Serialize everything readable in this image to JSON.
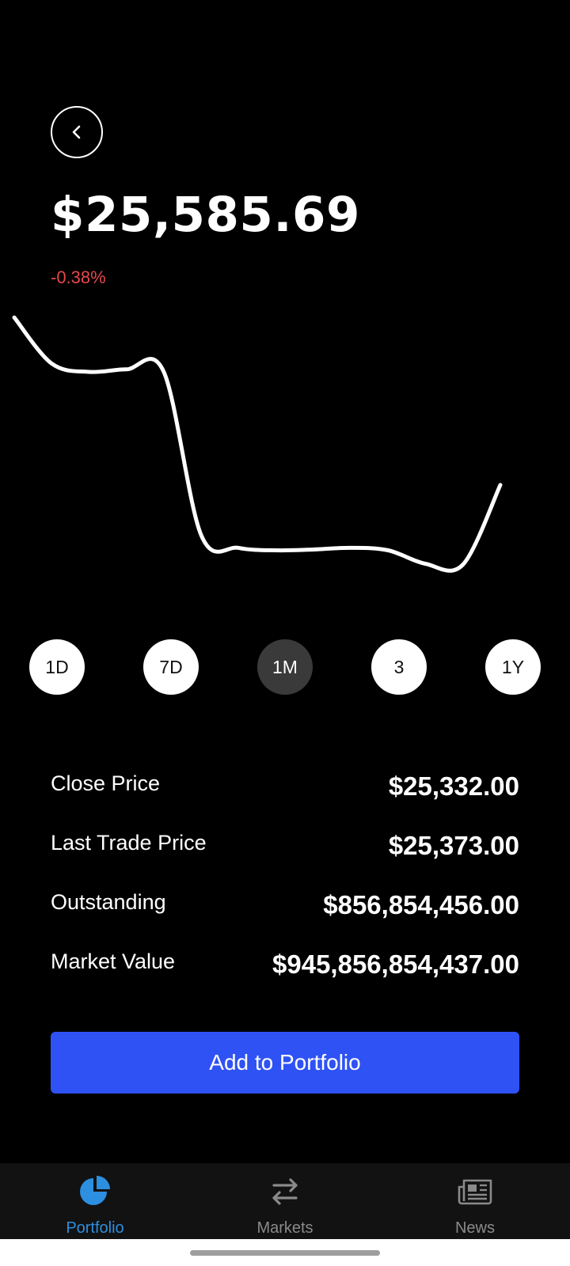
{
  "header": {
    "back_icon": "chevron-left-icon",
    "price": "$25,585.69",
    "change": "-0.38%",
    "change_color": "#e5484d"
  },
  "chart_data": {
    "type": "line",
    "title": "",
    "xlabel": "",
    "ylabel": "",
    "x": [
      0,
      1,
      2,
      3,
      4,
      5,
      6,
      7,
      8,
      9,
      10,
      11,
      12,
      13
    ],
    "series": [
      {
        "values": [
          25900,
          25845,
          25835,
          25838,
          25835,
          25640,
          25625,
          25622,
          25623,
          25625,
          25622,
          25606,
          25605,
          25700
        ]
      }
    ],
    "ylim": [
      25580,
      25920
    ],
    "grid": false,
    "line_color": "#ffffff"
  },
  "ranges": {
    "selected": "1M",
    "items": [
      {
        "label": "1D"
      },
      {
        "label": "7D"
      },
      {
        "label": "1M"
      },
      {
        "label": "3"
      },
      {
        "label": "1Y"
      }
    ]
  },
  "stats": {
    "items": [
      {
        "label": "Close Price",
        "value": "$25,332.00"
      },
      {
        "label": "Last Trade Price",
        "value": "$25,373.00"
      },
      {
        "label": "Outstanding",
        "value": "$856,854,456.00"
      },
      {
        "label": "Market Value",
        "value": "$945,856,854,437.00"
      }
    ]
  },
  "cta": {
    "label": "Add to Portfolio",
    "color": "#2f52f5"
  },
  "tabbar": {
    "active": "Portfolio",
    "active_color": "#2d8fe0",
    "items": [
      {
        "label": "Portfolio",
        "icon": "pie-chart-icon"
      },
      {
        "label": "Markets",
        "icon": "swap-arrows-icon"
      },
      {
        "label": "News",
        "icon": "newspaper-icon"
      }
    ]
  }
}
